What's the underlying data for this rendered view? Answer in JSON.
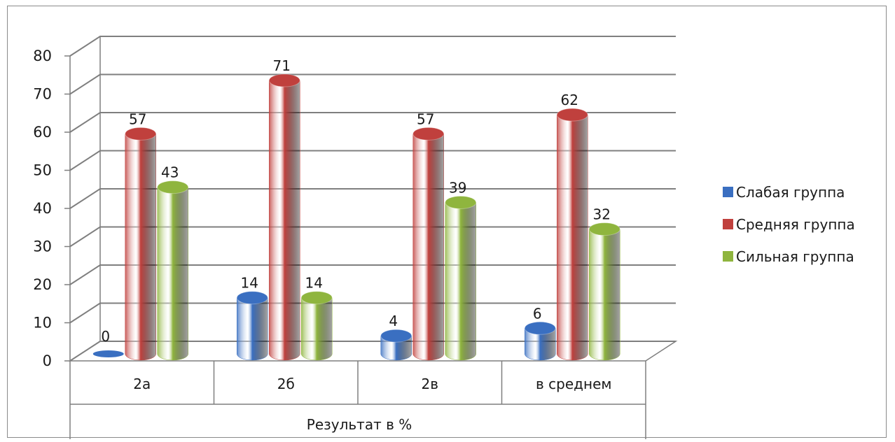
{
  "chart_data": {
    "type": "bar",
    "categories": [
      "2а",
      "2б",
      "2в",
      "в среднем"
    ],
    "series": [
      {
        "name": "Слабая группа",
        "values": [
          0,
          14,
          4,
          6
        ],
        "color": "#3a6fc1"
      },
      {
        "name": "Средняя группа",
        "values": [
          57,
          71,
          57,
          62
        ],
        "color": "#c0403d"
      },
      {
        "name": "Сильная группа",
        "values": [
          43,
          14,
          39,
          32
        ],
        "color": "#8fb53e"
      }
    ],
    "xlabel": "Результат в %",
    "ylabel": "",
    "ylim": [
      0,
      80
    ],
    "yticks": [
      0,
      10,
      20,
      30,
      40,
      50,
      60,
      70,
      80
    ],
    "grid": true,
    "legend_position": "right",
    "style": "3d-cylinder"
  }
}
